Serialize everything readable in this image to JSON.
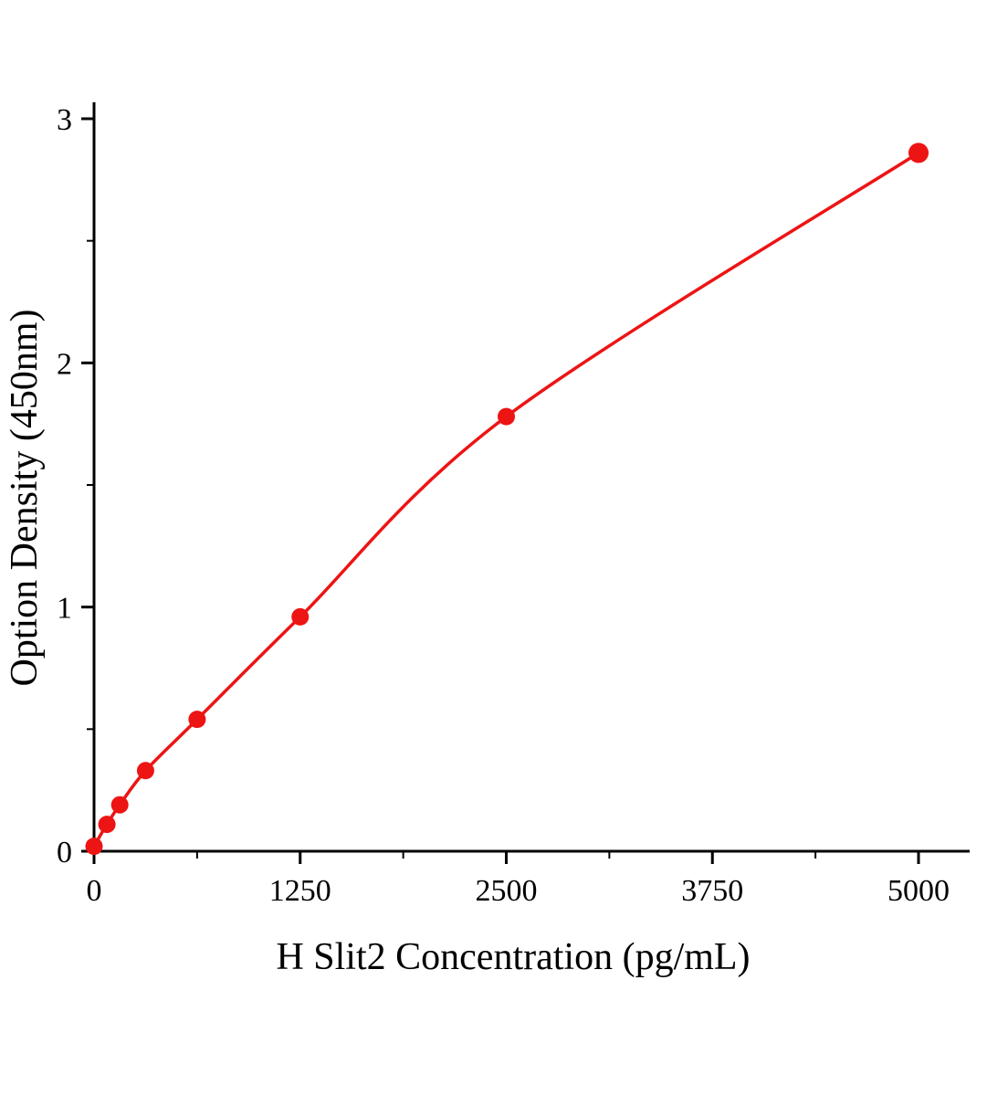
{
  "chart_data": {
    "type": "scatter",
    "title": "",
    "xlabel": "H Slit2 Concentration（pg/mL）",
    "ylabel": "Option Density（450nm）",
    "x": [
      0,
      78,
      156,
      312.5,
      625,
      1250,
      2500,
      5000
    ],
    "y": [
      0.02,
      0.11,
      0.19,
      0.33,
      0.54,
      0.96,
      1.78,
      2.86
    ],
    "xticks": [
      0,
      1250,
      2500,
      3750,
      5000
    ],
    "yticks": [
      0,
      1,
      2,
      3
    ],
    "x_minor_ticks": [
      625,
      1875,
      3125,
      4375
    ],
    "y_minor_ticks": [
      0.5,
      1.5,
      2.5
    ],
    "xlim": [
      0,
      5300
    ],
    "ylim": [
      0,
      3.07
    ],
    "grid": false,
    "legend": "none",
    "line_color": "#ed1414",
    "marker_color": "#ed1414",
    "axis_color": "#000000",
    "background_color": "#ffffff"
  }
}
